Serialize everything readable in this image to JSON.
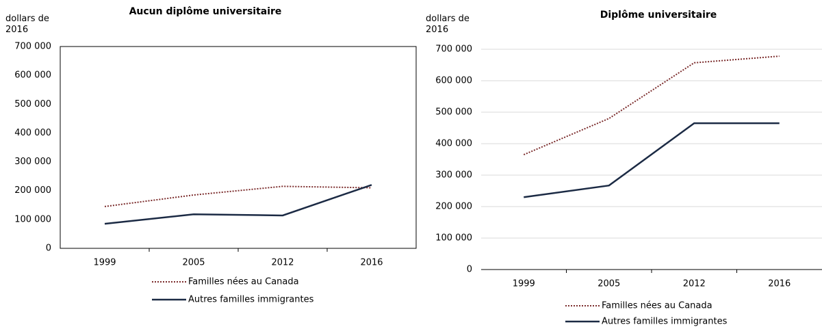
{
  "chart_data": [
    {
      "type": "line",
      "title": "Aucun diplôme universitaire",
      "y_label": "dollars de 2016",
      "categories": [
        "1999",
        "2005",
        "2012",
        "2016"
      ],
      "series": [
        {
          "name": "Familles nées au Canada",
          "color": "#7a2a2a",
          "dash": "dotted",
          "values": [
            145000,
            185000,
            215000,
            210000
          ]
        },
        {
          "name": "Autres familles immigrantes",
          "color": "#1b2a44",
          "dash": "solid",
          "values": [
            85000,
            118000,
            114000,
            220000
          ]
        }
      ],
      "ylim": [
        0,
        700000
      ],
      "yticks": [
        {
          "value": 0,
          "label": "0"
        },
        {
          "value": 100000,
          "label": "100 000"
        },
        {
          "value": 200000,
          "label": "200 000"
        },
        {
          "value": 300000,
          "label": "300 000"
        },
        {
          "value": 400000,
          "label": "400 000"
        },
        {
          "value": 500000,
          "label": "500 000"
        },
        {
          "value": 600000,
          "label": "600 000"
        },
        {
          "value": 700000,
          "label": "700 000"
        }
      ],
      "grid": false
    },
    {
      "type": "line",
      "title": "Diplôme universitaire",
      "y_label": "dollars de 2016",
      "categories": [
        "1999",
        "2005",
        "2012",
        "2016"
      ],
      "series": [
        {
          "name": "Familles nées au Canada",
          "color": "#7a2a2a",
          "dash": "dotted",
          "values": [
            365000,
            480000,
            657000,
            678000
          ]
        },
        {
          "name": "Autres familles immigrantes",
          "color": "#1b2a44",
          "dash": "solid",
          "values": [
            230000,
            267000,
            465000,
            465000
          ]
        }
      ],
      "ylim": [
        0,
        700000
      ],
      "yticks": [
        {
          "value": 0,
          "label": "0"
        },
        {
          "value": 100000,
          "label": "100 000"
        },
        {
          "value": 200000,
          "label": "200 000"
        },
        {
          "value": 300000,
          "label": "300 000"
        },
        {
          "value": 400000,
          "label": "400 000"
        },
        {
          "value": 500000,
          "label": "500 000"
        },
        {
          "value": 600000,
          "label": "600 000"
        },
        {
          "value": 700000,
          "label": "700 000"
        }
      ],
      "grid": true
    }
  ]
}
